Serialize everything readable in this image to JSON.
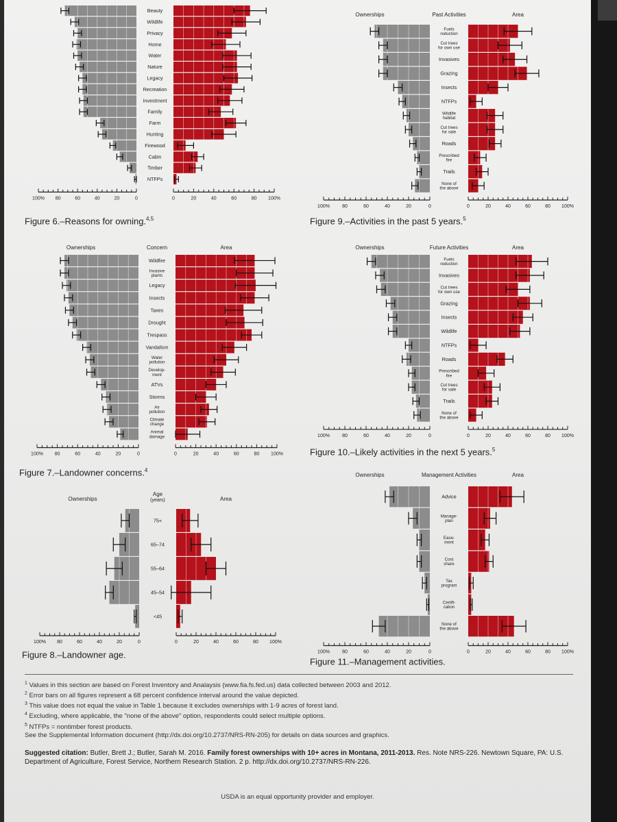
{
  "colors": {
    "owner": "#8c8c8c",
    "area": "#b5121b",
    "bar_line": "#ffffff",
    "error": "#111111",
    "axis": "#222222"
  },
  "chart_data": [
    {
      "id": "fig6",
      "type": "bar",
      "caption": {
        "text": "Figure 6.–Reasons for owning.",
        "sup": "4,5"
      },
      "headers": {
        "left": "",
        "center": "",
        "right": ""
      },
      "x_ticks_left": [
        "100%",
        "80",
        "60",
        "40",
        "20",
        "0"
      ],
      "x_ticks_right": [
        "0",
        "20",
        "40",
        "60",
        "80",
        "100%"
      ],
      "xlim": [
        0,
        100
      ],
      "categories": [
        [
          "Beauty"
        ],
        [
          "Wildlife"
        ],
        [
          "Privacy"
        ],
        [
          "Home"
        ],
        [
          "Water"
        ],
        [
          "Nature"
        ],
        [
          "Legacy"
        ],
        [
          "Recreation"
        ],
        [
          "Investment"
        ],
        [
          "Family"
        ],
        [
          "Farm"
        ],
        [
          "Hunting"
        ],
        [
          "Firewood"
        ],
        [
          "Cabin"
        ],
        [
          "Timber"
        ],
        [
          "NTFPs"
        ]
      ],
      "series": [
        {
          "name": "Ownerships",
          "values": [
            73,
            63,
            60,
            61,
            60,
            58,
            55,
            55,
            54,
            54,
            37,
            35,
            24,
            17,
            7,
            1
          ],
          "err": [
            4,
            4,
            4,
            4,
            4,
            4,
            4,
            4,
            4,
            4,
            4,
            4,
            3,
            3,
            2,
            1
          ]
        },
        {
          "name": "Area",
          "values": [
            76,
            72,
            58,
            52,
            63,
            63,
            64,
            58,
            56,
            47,
            62,
            50,
            12,
            24,
            22,
            3
          ],
          "err": [
            16,
            14,
            14,
            14,
            14,
            14,
            14,
            12,
            12,
            12,
            10,
            12,
            8,
            6,
            6,
            2
          ]
        }
      ]
    },
    {
      "id": "fig9",
      "type": "bar",
      "caption": {
        "text": "Figure 9.–Activities in the past 5 years.",
        "sup": "5"
      },
      "headers": {
        "left": "Ownerships",
        "center": "Past Activities",
        "right": "Area"
      },
      "x_ticks_left": [
        "100%",
        "80",
        "60",
        "40",
        "20",
        "0"
      ],
      "x_ticks_right": [
        "0",
        "20",
        "40",
        "60",
        "80",
        "100%"
      ],
      "xlim": [
        0,
        100
      ],
      "categories": [
        [
          "Fuels",
          "reduction"
        ],
        [
          "Cut trees",
          "for own use"
        ],
        [
          "Invasives"
        ],
        [
          "Grazing"
        ],
        [
          "Insects"
        ],
        [
          "NTFPs"
        ],
        [
          "Wildlife",
          "habitat"
        ],
        [
          "Cut trees",
          "for sale"
        ],
        [
          "Roads"
        ],
        [
          "Prescribed",
          "fire"
        ],
        [
          "Trails"
        ],
        [
          "None of",
          "the above"
        ]
      ],
      "series": [
        {
          "name": "Ownerships",
          "values": [
            52,
            44,
            44,
            44,
            30,
            26,
            22,
            20,
            16,
            12,
            10,
            14
          ],
          "err": [
            4,
            4,
            4,
            4,
            4,
            3,
            3,
            3,
            3,
            2,
            2,
            3
          ]
        },
        {
          "name": "Area",
          "values": [
            50,
            42,
            47,
            59,
            30,
            8,
            27,
            27,
            27,
            12,
            14,
            10
          ],
          "err": [
            14,
            12,
            12,
            12,
            10,
            6,
            8,
            8,
            6,
            6,
            6,
            6
          ]
        }
      ]
    },
    {
      "id": "fig7",
      "type": "bar",
      "caption": {
        "text": "Figure 7.–Landowner concerns.",
        "sup": "4"
      },
      "headers": {
        "left": "Ownerships",
        "center": "Concern",
        "right": "Area"
      },
      "x_ticks_left": [
        "100%",
        "80",
        "60",
        "40",
        "20",
        "0"
      ],
      "x_ticks_right": [
        "0",
        "20",
        "40",
        "60",
        "80",
        "100%"
      ],
      "xlim": [
        0,
        100
      ],
      "categories": [
        [
          "Wildfire"
        ],
        [
          "Invasive",
          "plants"
        ],
        [
          "Legacy"
        ],
        [
          "Insects"
        ],
        [
          "Taxes"
        ],
        [
          "Drought"
        ],
        [
          "Trespass"
        ],
        [
          "Vandalism"
        ],
        [
          "Water",
          "pollution"
        ],
        [
          "Develop-",
          "ment"
        ],
        [
          "ATVs"
        ],
        [
          "Storms"
        ],
        [
          "Air",
          "pollution"
        ],
        [
          "Climate",
          "change"
        ],
        [
          "Animal",
          "damage"
        ]
      ],
      "series": [
        {
          "name": "Ownerships",
          "values": [
            73,
            73,
            71,
            69,
            68,
            65,
            61,
            51,
            48,
            47,
            37,
            32,
            31,
            29,
            18
          ],
          "err": [
            4,
            4,
            4,
            4,
            4,
            4,
            4,
            4,
            4,
            4,
            4,
            4,
            4,
            4,
            3
          ]
        },
        {
          "name": "Area",
          "values": [
            78,
            78,
            79,
            78,
            67,
            68,
            75,
            58,
            50,
            47,
            40,
            30,
            33,
            31,
            12
          ],
          "err": [
            20,
            18,
            20,
            14,
            18,
            18,
            10,
            12,
            12,
            12,
            10,
            10,
            8,
            8,
            12
          ]
        }
      ]
    },
    {
      "id": "fig10",
      "type": "bar",
      "caption": {
        "text": "Figure 10.–Likely activities in the next 5 years.",
        "sup": "5"
      },
      "headers": {
        "left": "Ownerships",
        "center": "Future Activities",
        "right": "Area"
      },
      "x_ticks_left": [
        "100%",
        "80",
        "60",
        "40",
        "20",
        "0"
      ],
      "x_ticks_right": [
        "0",
        "20",
        "40",
        "60",
        "80",
        "100%"
      ],
      "xlim": [
        0,
        100
      ],
      "categories": [
        [
          "Fuels",
          "reduction"
        ],
        [
          "Invasives"
        ],
        [
          "Cut trees",
          "for own use"
        ],
        [
          "Grazing"
        ],
        [
          "Insects"
        ],
        [
          "Wildlife"
        ],
        [
          "NTFPs"
        ],
        [
          "Roads"
        ],
        [
          "Prescribed",
          "fire"
        ],
        [
          "Cut trees",
          "for sale"
        ],
        [
          "Trails"
        ],
        [
          "None of",
          "the above"
        ]
      ],
      "series": [
        {
          "name": "Ownerships",
          "values": [
            55,
            47,
            46,
            37,
            35,
            35,
            20,
            22,
            17,
            17,
            13,
            12
          ],
          "err": [
            4,
            4,
            4,
            4,
            4,
            4,
            3,
            4,
            3,
            3,
            3,
            3
          ]
        },
        {
          "name": "Area",
          "values": [
            64,
            62,
            50,
            62,
            55,
            52,
            10,
            37,
            18,
            24,
            24,
            8
          ],
          "err": [
            16,
            14,
            12,
            12,
            10,
            10,
            8,
            8,
            8,
            8,
            6,
            6
          ]
        }
      ]
    },
    {
      "id": "fig8",
      "type": "bar",
      "caption": {
        "text": "Figure 8.–Landowner age.",
        "sup": ""
      },
      "headers": {
        "left": "Ownerships",
        "center": "Age|(years)",
        "right": "Area"
      },
      "x_ticks_left": [
        "100%",
        "80",
        "60",
        "40",
        "20",
        "0"
      ],
      "x_ticks_right": [
        "0",
        "20",
        "40",
        "60",
        "80",
        "100%"
      ],
      "xlim": [
        0,
        100
      ],
      "categories": [
        [
          "75+"
        ],
        [
          "65–74"
        ],
        [
          "55–64"
        ],
        [
          "45–54"
        ],
        [
          "<45"
        ]
      ],
      "series": [
        {
          "name": "Ownerships",
          "values": [
            14,
            20,
            25,
            30,
            4
          ],
          "err": [
            4,
            6,
            8,
            4,
            1
          ]
        },
        {
          "name": "Area",
          "values": [
            14,
            25,
            40,
            15,
            4
          ],
          "err": [
            8,
            10,
            10,
            20,
            2
          ]
        }
      ]
    },
    {
      "id": "fig11",
      "type": "bar",
      "caption": {
        "text": "Figure 11.–Management activities.",
        "sup": ""
      },
      "headers": {
        "left": "Ownerships",
        "center": "Management Activities",
        "right": "Area"
      },
      "x_ticks_left": [
        "100%",
        "80",
        "60",
        "40",
        "20",
        "0"
      ],
      "x_ticks_right": [
        "0",
        "20",
        "40",
        "60",
        "80",
        "100%"
      ],
      "xlim": [
        0,
        100
      ],
      "categories": [
        [
          "Advice"
        ],
        [
          "Manage-",
          "plan"
        ],
        [
          "Ease-",
          "ment"
        ],
        [
          "Cost",
          "share"
        ],
        [
          "Tax",
          "program"
        ],
        [
          "Certifi-",
          "cation"
        ],
        [
          "None of",
          "the above"
        ]
      ],
      "series": [
        {
          "name": "Ownerships",
          "values": [
            38,
            16,
            10,
            10,
            5,
            2,
            48
          ],
          "err": [
            4,
            4,
            2,
            2,
            2,
            1,
            6
          ]
        },
        {
          "name": "Area",
          "values": [
            44,
            22,
            17,
            21,
            3,
            3,
            46
          ],
          "err": [
            12,
            6,
            4,
            4,
            2,
            1,
            12
          ]
        }
      ]
    }
  ],
  "footnotes": [
    {
      "sup": "1",
      "text": "Values in this section are based on Forest Inventory and Analaysis (www.fia.fs.fed.us) data collected between 2003 and 2012."
    },
    {
      "sup": "2",
      "text": "Error bars on all figures represent a 68 percent confidence interval around the value depicted."
    },
    {
      "sup": "3",
      "text": "This value does not equal the value in Table 1 because it excludes ownerships with 1-9 acres of forest land."
    },
    {
      "sup": "4",
      "text": "Excluding, where applicable, the \"none of the above\" option, respondents could select multiple options."
    },
    {
      "sup": "5",
      "text": "NTFPs = nontimber forest products."
    },
    {
      "sup": "",
      "text": "See the Supplemental Information document (http://dx.doi.org/10.2737/NRS-RN-205) for details on data sources and graphics."
    }
  ],
  "citation": {
    "label": "Suggested citation:",
    "authors": " Butler, Brett J.; Butler, Sarah M. 2016. ",
    "title": "Family forest ownerships with 10+ acres in Montana, 2011-2013.",
    "rest": " Res. Note NRS-226. Newtown Square, PA: U.S. Department of Agriculture, Forest Service, Northern Research Station. 2 p. http://dx.doi.org/10.2737/NRS-RN-226."
  },
  "usda": "USDA is an equal opportunity provider and employer."
}
